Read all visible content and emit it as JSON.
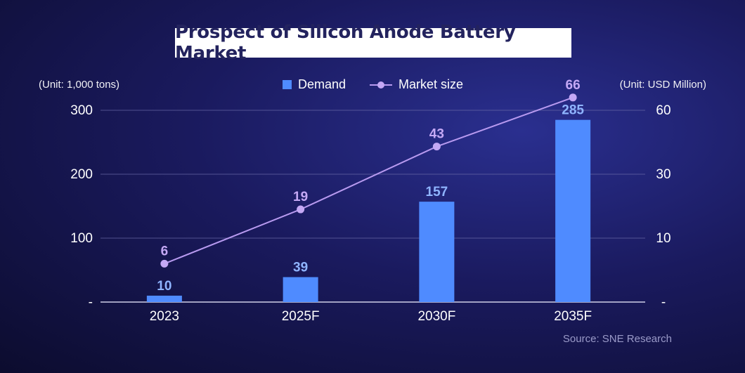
{
  "chart_data": {
    "type": "bar+line",
    "title": "Prospect of Silicon Anode Battery Market",
    "categories": [
      "2023",
      "2025F",
      "2030F",
      "2035F"
    ],
    "series": [
      {
        "name": "Demand",
        "type": "bar",
        "axis": "left",
        "values": [
          10,
          39,
          157,
          285
        ],
        "color": "#4f8bff"
      },
      {
        "name": "Market size",
        "type": "line",
        "axis": "right",
        "values": [
          6,
          19,
          43,
          66
        ],
        "color": "#b89af0"
      }
    ],
    "left_axis": {
      "unit_label": "(Unit: 1,000 tons)",
      "ticks": [
        "-",
        "100",
        "200",
        "300"
      ],
      "range": [
        0,
        300
      ]
    },
    "right_axis": {
      "unit_label": "(Unit: USD Million)",
      "ticks": [
        "-",
        "10",
        "30",
        "60"
      ]
    },
    "gridlines": true,
    "legend_position": "top-center",
    "source": "Source: SNE Research"
  }
}
